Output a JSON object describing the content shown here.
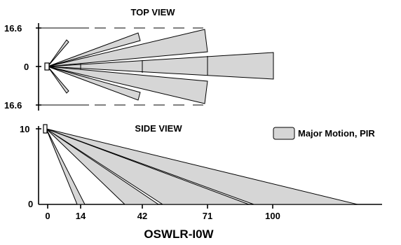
{
  "top_view": {
    "title": "TOP VIEW",
    "y_labels": [
      "16.6",
      "0",
      "16.6"
    ]
  },
  "side_view": {
    "title": "SIDE VIEW",
    "y_labels": [
      "10",
      "0"
    ],
    "x_labels": [
      "0",
      "14",
      "42",
      "71",
      "100"
    ]
  },
  "legend": {
    "label": "Major Motion, PIR",
    "fill": "#d6d6d6"
  },
  "model": "OSWLR-I0W",
  "colors": {
    "zone_fill": "#d6d6d6",
    "line": "#000000"
  }
}
